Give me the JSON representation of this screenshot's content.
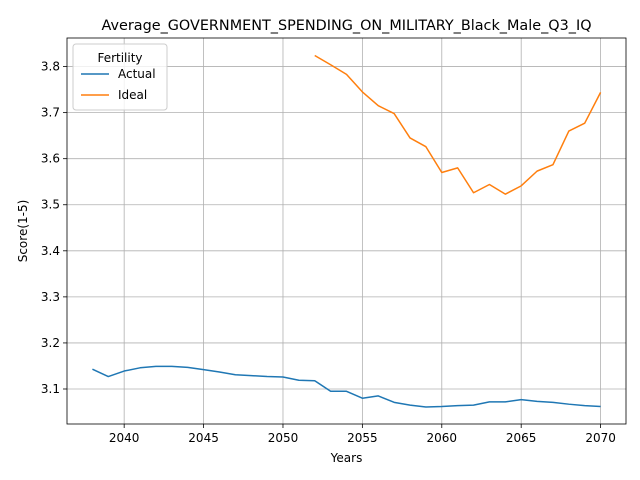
{
  "chart_data": {
    "type": "line",
    "title": "Average_GOVERNMENT_SPENDING_ON_MILITARY_Black_Male_Q3_IQ",
    "xlabel": "Years",
    "ylabel": "Score(1-5)",
    "xlim": [
      2036.4,
      2071.6
    ],
    "ylim": [
      3.024,
      3.862
    ],
    "xticks": [
      2040,
      2045,
      2050,
      2055,
      2060,
      2065,
      2070
    ],
    "yticks": [
      3.1,
      3.2,
      3.3,
      3.4,
      3.5,
      3.6,
      3.7,
      3.8
    ],
    "grid": true,
    "legend": {
      "title": "Fertility",
      "placement": "top-left"
    },
    "series": [
      {
        "name": "Actual",
        "color": "#1f77b4",
        "x": [
          2038,
          2039,
          2040,
          2041,
          2042,
          2043,
          2044,
          2045,
          2046,
          2047,
          2048,
          2049,
          2050,
          2051,
          2052,
          2053,
          2054,
          2055,
          2056,
          2057,
          2058,
          2059,
          2060,
          2061,
          2062,
          2063,
          2064,
          2065,
          2066,
          2067,
          2068,
          2069,
          2070
        ],
        "y": [
          3.143,
          3.127,
          3.139,
          3.146,
          3.149,
          3.149,
          3.147,
          3.142,
          3.137,
          3.131,
          3.129,
          3.127,
          3.126,
          3.119,
          3.118,
          3.095,
          3.095,
          3.08,
          3.085,
          3.071,
          3.065,
          3.061,
          3.062,
          3.064,
          3.065,
          3.072,
          3.072,
          3.077,
          3.073,
          3.071,
          3.067,
          3.064,
          3.062
        ]
      },
      {
        "name": "Ideal",
        "color": "#ff7f0e",
        "x": [
          2052,
          2053,
          2054,
          2055,
          2056,
          2057,
          2058,
          2059,
          2060,
          2061,
          2062,
          2063,
          2064,
          2065,
          2066,
          2067,
          2068,
          2069,
          2070
        ],
        "y": [
          3.824,
          3.804,
          3.783,
          3.745,
          3.715,
          3.698,
          3.645,
          3.626,
          3.57,
          3.58,
          3.526,
          3.544,
          3.523,
          3.541,
          3.573,
          3.587,
          3.66,
          3.677,
          3.744
        ]
      }
    ]
  }
}
